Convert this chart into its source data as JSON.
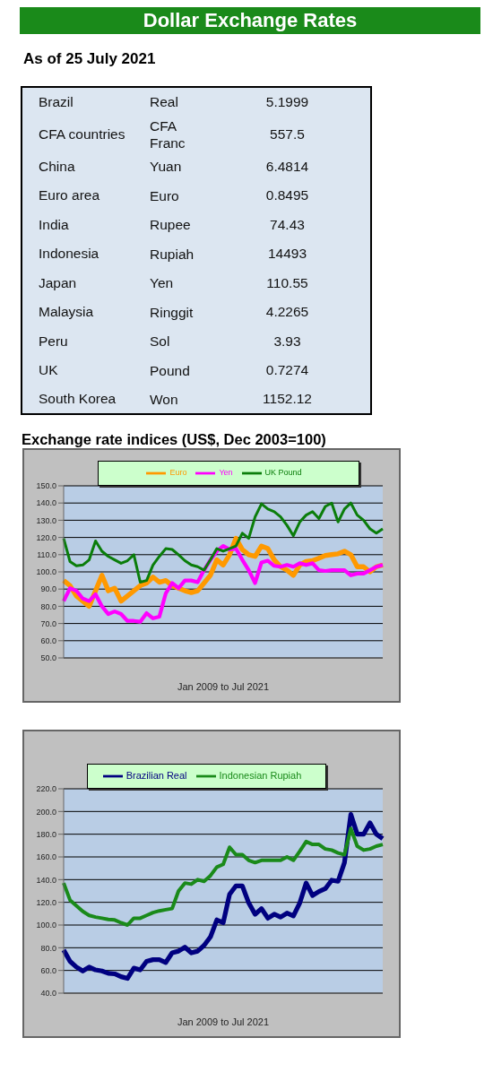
{
  "chart_data": [
    {
      "type": "other",
      "title": "Dollar Exchange Rates",
      "subtitle": "As of 25 July 2021",
      "categories": [
        "Brazil",
        "CFA countries",
        "China",
        "Euro area",
        "India",
        "Indonesia",
        "Japan",
        "Malaysia",
        "Peru",
        "UK",
        "South Korea"
      ],
      "y2_categories": [
        "Real",
        "CFA Franc",
        "Yuan",
        "Euro",
        "Rupee",
        "Rupiah",
        "Yen",
        "Ringgit",
        "Sol",
        "Pound",
        "Won"
      ],
      "values": [
        5.1999,
        557.5,
        6.4814,
        0.8495,
        74.43,
        14493,
        110.55,
        4.2265,
        3.93,
        0.7274,
        1152.12
      ],
      "data_labels": true
    },
    {
      "type": "line",
      "title": "Exchange rate indices (US$, Dec 2003=100)",
      "xlabel": "Jan 2009  to Jul 2021",
      "categories": [
        null,
        null,
        null,
        null,
        null,
        null,
        null,
        null,
        null,
        null,
        null,
        null,
        null,
        null,
        null,
        null,
        null,
        null,
        null,
        null,
        null,
        null,
        null,
        null,
        null,
        null,
        null,
        null,
        null,
        null,
        null,
        null,
        null,
        null,
        null,
        null,
        null,
        null,
        null,
        null,
        null,
        null,
        null,
        null,
        null,
        null,
        null,
        null,
        null,
        null,
        null
      ],
      "series": [
        {
          "name": "Euro",
          "color": "#ff9900",
          "values": [
            95,
            92,
            86,
            83,
            80,
            89,
            98,
            89,
            90.5,
            83,
            86,
            89,
            92,
            93.5,
            97,
            94,
            95,
            92,
            90.5,
            89,
            88,
            89,
            93.5,
            98,
            107,
            104,
            110,
            119.5,
            113,
            110,
            109,
            115,
            113.5,
            107,
            103,
            101,
            98,
            104,
            106,
            106.5,
            108,
            109.5,
            110,
            110.5,
            112,
            110,
            103,
            103,
            100,
            103,
            104
          ]
        },
        {
          "name": "Yen",
          "color": "#ff00ff",
          "values": [
            83,
            90.5,
            89,
            84.5,
            83,
            87,
            80,
            75.5,
            77,
            75.5,
            71.5,
            71.5,
            71,
            76,
            73,
            74,
            87.5,
            93.5,
            90.5,
            95,
            95,
            94,
            101,
            107,
            112,
            115,
            113,
            113.5,
            107,
            101,
            93.5,
            105.5,
            106.5,
            103.5,
            103,
            104,
            103,
            105,
            104,
            105,
            101,
            100.5,
            101,
            101,
            101,
            98,
            99,
            99,
            101,
            103,
            104
          ]
        },
        {
          "name": "UK Pound",
          "color": "#0a7d0a",
          "values": [
            119.5,
            106,
            103.5,
            104,
            107,
            118,
            112,
            109,
            107,
            105,
            106.5,
            110,
            94,
            95,
            104,
            109,
            113.5,
            113,
            110,
            106.5,
            104,
            103,
            101,
            107,
            113.5,
            112,
            113.5,
            115,
            122.5,
            119.5,
            132,
            139.5,
            136.5,
            135,
            132,
            127,
            121,
            129,
            133,
            135,
            131,
            138,
            140,
            129,
            136.5,
            140,
            133,
            130,
            125,
            122.5,
            125
          ]
        }
      ],
      "ylim": [
        50,
        150
      ],
      "yticks": [
        {
          "value": 50,
          "label": "50.0"
        },
        {
          "value": 60,
          "label": "60.0"
        },
        {
          "value": 70,
          "label": "70.0"
        },
        {
          "value": 80,
          "label": "80.0"
        },
        {
          "value": 90,
          "label": "90.0"
        },
        {
          "value": 100,
          "label": "100.0"
        },
        {
          "value": 110,
          "label": "110.0"
        },
        {
          "value": 120,
          "label": "120.0"
        },
        {
          "value": 130,
          "label": "130.0"
        },
        {
          "value": 140,
          "label": "140.0"
        },
        {
          "value": 150,
          "label": "150.0"
        }
      ],
      "grid": "y",
      "legend": "top",
      "tick_labels": "y"
    },
    {
      "type": "line",
      "xlabel": "Jan 2009  to Jul 2021",
      "categories": [
        null,
        null,
        null,
        null,
        null,
        null,
        null,
        null,
        null,
        null,
        null,
        null,
        null,
        null,
        null,
        null,
        null,
        null,
        null,
        null,
        null,
        null,
        null,
        null,
        null,
        null,
        null,
        null,
        null,
        null,
        null,
        null,
        null,
        null,
        null,
        null,
        null,
        null,
        null,
        null,
        null,
        null,
        null,
        null,
        null,
        null,
        null,
        null,
        null,
        null,
        null
      ],
      "series": [
        {
          "name": "Brazilian Real",
          "color": "#000080",
          "values": [
            78,
            68,
            63,
            59.5,
            63,
            60.5,
            59.5,
            57.5,
            57,
            54.5,
            53,
            62,
            60.5,
            68,
            69.5,
            69.5,
            67,
            75.5,
            77,
            80.5,
            75.5,
            77,
            82,
            89.5,
            104.5,
            102,
            127,
            134.5,
            134.5,
            119.5,
            109.5,
            114.5,
            106,
            109.5,
            107,
            110.5,
            108,
            119.5,
            137,
            126,
            129.5,
            132,
            139.5,
            138.5,
            155,
            197.5,
            180,
            180,
            190,
            180,
            176
          ]
        },
        {
          "name": "Indonesian Rupiah",
          "color": "#1a8a1a",
          "values": [
            137,
            122,
            117,
            112,
            108.5,
            107,
            106,
            105,
            104.5,
            102,
            100,
            106,
            106,
            108.5,
            111,
            112.5,
            113.5,
            114.5,
            130,
            137,
            136,
            140,
            138.5,
            143.5,
            151,
            153.5,
            168.5,
            162,
            162,
            157,
            155,
            157,
            157,
            157,
            157,
            160,
            157,
            165,
            173.5,
            171,
            171,
            167,
            166,
            163.5,
            162,
            185,
            169.5,
            166,
            167,
            169.5,
            171
          ]
        }
      ],
      "ylim": [
        40,
        220
      ],
      "yticks": [
        {
          "value": 40,
          "label": "40.0"
        },
        {
          "value": 60,
          "label": "60.0"
        },
        {
          "value": 80,
          "label": "80.0"
        },
        {
          "value": 100,
          "label": "100.0"
        },
        {
          "value": 120,
          "label": "120.0"
        },
        {
          "value": 140,
          "label": "140.0"
        },
        {
          "value": 160,
          "label": "160.0"
        },
        {
          "value": 180,
          "label": "180.0"
        },
        {
          "value": 200,
          "label": "200.0"
        },
        {
          "value": 220,
          "label": "220.0"
        }
      ],
      "grid": "y",
      "legend": "top",
      "tick_labels": "y"
    }
  ]
}
